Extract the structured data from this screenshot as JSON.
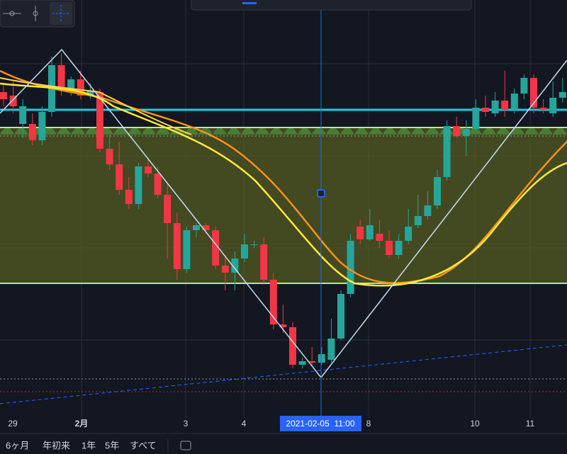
{
  "chart_data": {
    "type": "candlestick",
    "ylim": [
      0,
      590
    ],
    "up_color": "#26a69a",
    "down_color": "#f23645",
    "open": [
      460,
      455,
      415,
      415,
      392,
      432,
      498,
      465,
      478,
      455,
      460,
      380,
      358,
      322,
      302,
      355,
      345,
      315,
      275,
      210,
      265,
      272,
      265,
      215,
      205,
      225,
      245,
      245,
      195,
      132,
      128,
      75,
      80,
      78,
      82,
      112,
      175,
      270,
      252,
      260,
      250,
      230,
      250,
      272,
      285,
      300,
      340,
      412,
      398,
      408,
      438,
      430,
      448,
      435,
      458,
      480,
      438,
      430,
      452
    ],
    "high": [
      472,
      475,
      450,
      430,
      440,
      510,
      515,
      482,
      490,
      472,
      465,
      400,
      390,
      340,
      360,
      365,
      355,
      330,
      290,
      270,
      275,
      275,
      270,
      230,
      235,
      260,
      250,
      255,
      205,
      160,
      135,
      85,
      100,
      100,
      140,
      180,
      260,
      280,
      295,
      280,
      265,
      260,
      295,
      315,
      320,
      350,
      420,
      425,
      420,
      450,
      455,
      460,
      490,
      465,
      485,
      485,
      450,
      475,
      480
    ],
    "low": [
      440,
      430,
      395,
      385,
      385,
      425,
      455,
      455,
      450,
      450,
      375,
      350,
      315,
      295,
      295,
      340,
      310,
      225,
      195,
      205,
      255,
      260,
      210,
      180,
      180,
      220,
      240,
      190,
      125,
      120,
      70,
      70,
      75,
      75,
      78,
      110,
      170,
      245,
      250,
      240,
      225,
      225,
      245,
      268,
      280,
      295,
      335,
      395,
      370,
      405,
      425,
      425,
      425,
      430,
      450,
      430,
      430,
      425,
      445
    ],
    "close": [
      450,
      440,
      440,
      392,
      432,
      498,
      465,
      478,
      455,
      462,
      380,
      358,
      322,
      302,
      355,
      345,
      315,
      275,
      210,
      265,
      272,
      265,
      215,
      205,
      225,
      245,
      245,
      195,
      132,
      128,
      75,
      80,
      78,
      90,
      112,
      175,
      250,
      252,
      272,
      250,
      230,
      250,
      270,
      285,
      300,
      340,
      412,
      398,
      408,
      438,
      432,
      448,
      435,
      458,
      480,
      438,
      435,
      452,
      460
    ],
    "x_labels": [
      "29",
      "2月",
      "3",
      "4",
      "8",
      "10",
      "11"
    ],
    "crosshair_label": "2021-02-05  11:00"
  },
  "range_buttons": [
    "6ヶ月",
    "年初来",
    "1年",
    "5年",
    "すべて"
  ]
}
